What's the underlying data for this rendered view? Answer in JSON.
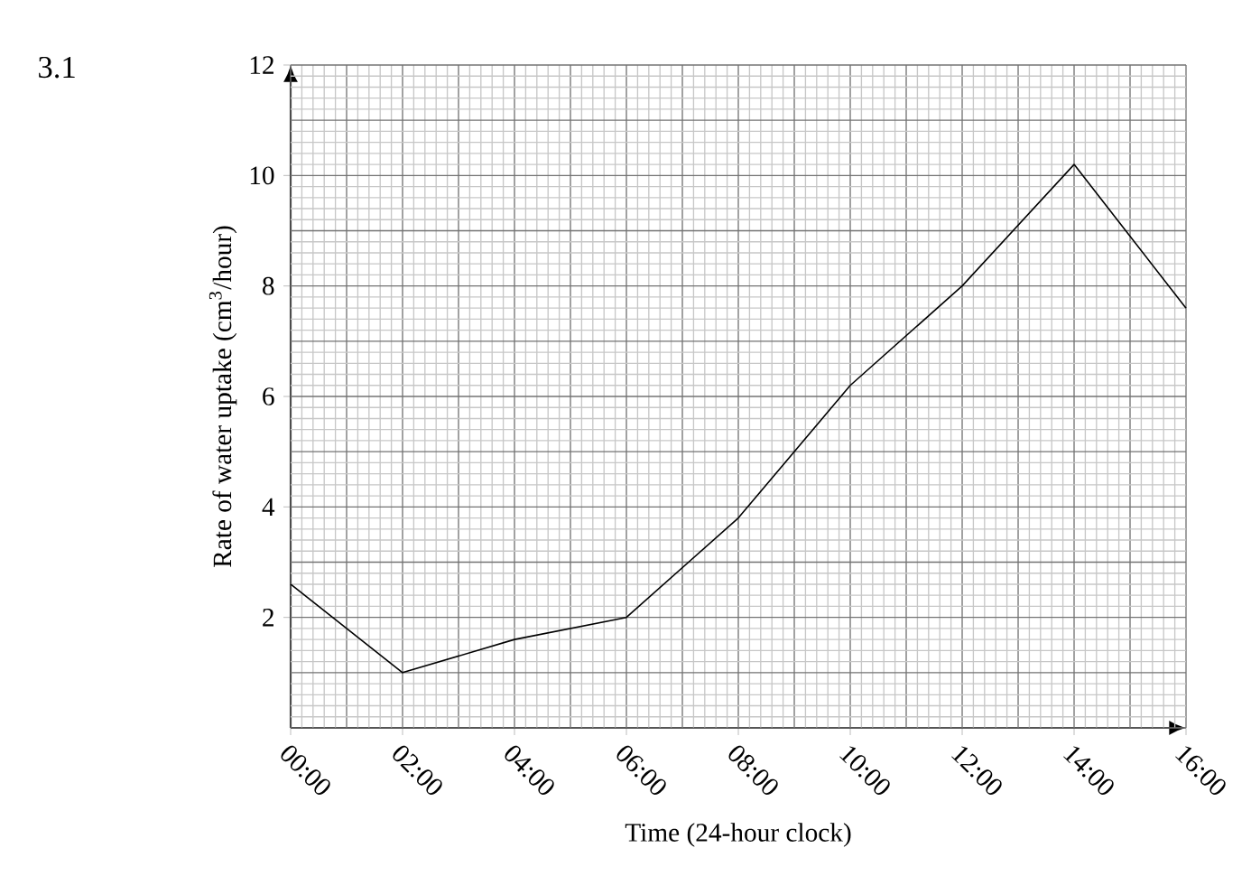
{
  "chart_data": {
    "type": "line",
    "xlabel": "Time (24-hour clock)",
    "ylabel": "Rate of water uptake (cm$^{3}$/hour)",
    "annotations": [
      "3.1"
    ],
    "x": [
      0,
      2,
      4,
      6,
      8,
      10,
      12,
      14,
      16
    ],
    "series": [
      {
        "color": "#000000",
        "values": [
          2.6,
          1.0,
          1.6,
          2.0,
          3.8,
          6.2,
          8.0,
          10.2,
          7.6
        ]
      }
    ],
    "xlim": [
      0,
      16
    ],
    "ylim": [
      0,
      12
    ],
    "xticks": [
      {
        "value": 0,
        "label": "00:00"
      },
      {
        "value": 2,
        "label": "02:00"
      },
      {
        "value": 4,
        "label": "04:00"
      },
      {
        "value": 6,
        "label": "06:00"
      },
      {
        "value": 8,
        "label": "08:00"
      },
      {
        "value": 10,
        "label": "10:00"
      },
      {
        "value": 12,
        "label": "12:00"
      },
      {
        "value": 14,
        "label": "14:00"
      },
      {
        "value": 16,
        "label": "16:00"
      }
    ],
    "yticks": [
      2,
      4,
      6,
      8,
      10,
      12
    ],
    "grid": true,
    "marker": "none",
    "line_style": "solid"
  }
}
